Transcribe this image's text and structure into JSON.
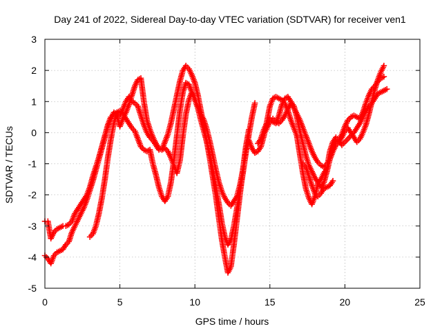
{
  "chart_data": {
    "type": "scatter",
    "title": "Day 241 of 2022, Sidereal Day-to-day VTEC variation (SDTVAR) for receiver ven1",
    "xlabel": "GPS time / hours",
    "ylabel": "SDTVAR / TECUs",
    "xlim": [
      0,
      25
    ],
    "ylim": [
      -5,
      3
    ],
    "xticks": [
      0,
      5,
      10,
      15,
      20,
      25
    ],
    "yticks": [
      -5,
      -4,
      -3,
      -2,
      -1,
      0,
      1,
      2,
      3
    ],
    "grid": true,
    "legend": "none",
    "marker": "plus",
    "color": "#ff0000",
    "series": [
      {
        "x": [
          0.0,
          0.2,
          0.4,
          0.6,
          0.8,
          1.0,
          1.2,
          1.4,
          1.6,
          1.8,
          2.0,
          2.2,
          2.4,
          2.6,
          2.8,
          3.0,
          3.2,
          3.4,
          3.6,
          3.8,
          4.0,
          4.2,
          4.4,
          4.6,
          4.8,
          5.0,
          5.2,
          5.4,
          5.6,
          5.8,
          6.0,
          6.2,
          6.4,
          6.6,
          6.8,
          7.0,
          7.2,
          7.4,
          7.6,
          7.8,
          8.0,
          8.2,
          8.4,
          8.6,
          8.8,
          9.0,
          9.2,
          9.4,
          9.6,
          9.8,
          10.0,
          10.2,
          10.4,
          10.6,
          10.8,
          11.0,
          11.2,
          11.4,
          11.6,
          11.8,
          12.0,
          12.2,
          12.4,
          12.6,
          12.8,
          13.0,
          13.2,
          13.4,
          13.6,
          13.8,
          14.0
        ],
        "y": [
          -2.85,
          -2.85,
          -3.4,
          -3.2,
          -3.1,
          -3.05,
          -3.0,
          -3.0,
          -2.95,
          -2.85,
          -2.6,
          -2.45,
          -2.3,
          -2.15,
          -2.0,
          -1.75,
          -1.4,
          -1.1,
          -0.8,
          -0.45,
          -0.1,
          0.25,
          0.5,
          0.6,
          0.65,
          0.7,
          0.6,
          0.45,
          0.3,
          0.15,
          0.05,
          -0.2,
          -0.45,
          -0.55,
          -0.6,
          -0.55,
          -1.0,
          -1.35,
          -1.75,
          -2.05,
          -2.2,
          -2.05,
          -1.6,
          -0.9,
          -0.1,
          0.7,
          1.3,
          1.6,
          1.55,
          1.3,
          1.05,
          0.8,
          0.4,
          0.05,
          -0.3,
          -0.7,
          -1.2,
          -1.75,
          -2.3,
          -2.9,
          -3.35,
          -3.6,
          -3.45,
          -3.0,
          -2.45,
          -1.9,
          -1.3,
          -0.65,
          -0.05,
          0.5,
          0.95
        ]
      },
      {
        "x": [
          0.0,
          0.2,
          0.4,
          0.6,
          0.8,
          1.0,
          1.2,
          1.4,
          1.6,
          1.8,
          2.0,
          2.2,
          2.4,
          2.6,
          2.8,
          3.0,
          3.2,
          3.4,
          3.6,
          3.8,
          4.0,
          4.2,
          4.4,
          4.6,
          4.8,
          5.0,
          5.2,
          5.4,
          5.6,
          5.8,
          6.0,
          6.2,
          6.4,
          6.6,
          6.8,
          7.0,
          7.2,
          7.4,
          7.6,
          7.8,
          8.0,
          8.2,
          8.4,
          8.6,
          8.8,
          9.0,
          9.2,
          9.4,
          9.6,
          9.8,
          10.0,
          10.2,
          10.4,
          10.6,
          10.8,
          11.0,
          11.2,
          11.4,
          11.6,
          11.8,
          12.0,
          12.2,
          12.4,
          12.6,
          12.8,
          13.0,
          13.2,
          13.4,
          13.6
        ],
        "y": [
          -3.95,
          -4.05,
          -4.2,
          -3.95,
          -3.85,
          -3.8,
          -3.75,
          -3.6,
          -3.5,
          -3.2,
          -3.0,
          -2.8,
          -2.6,
          -2.4,
          -2.15,
          -1.85,
          -1.55,
          -1.2,
          -0.85,
          -0.5,
          -0.15,
          0.2,
          0.45,
          0.65,
          0.55,
          0.2,
          0.45,
          0.65,
          0.9,
          1.2,
          1.5,
          1.7,
          1.75,
          1.0,
          0.4,
          0.1,
          -0.15,
          -0.35,
          -0.5,
          -0.55,
          -0.3,
          -0.05,
          0.3,
          0.75,
          1.2,
          1.65,
          2.0,
          2.15,
          2.05,
          1.85,
          1.6,
          1.2,
          0.7,
          0.2,
          -0.3,
          -0.85,
          -1.45,
          -2.05,
          -2.75,
          -3.45,
          -4.0,
          -4.5,
          -4.3,
          -3.6,
          -2.8,
          -2.0,
          -1.2,
          -0.45,
          0.1
        ]
      },
      {
        "x": [
          3.0,
          3.2,
          3.4,
          3.6,
          3.8,
          4.0,
          4.2,
          4.4,
          4.6,
          4.8,
          5.0,
          5.2,
          5.4,
          5.6,
          5.8,
          6.0,
          6.2,
          6.4,
          6.6,
          6.8,
          7.0,
          7.2,
          7.4,
          7.6,
          7.8,
          8.0,
          8.2,
          8.4,
          8.6,
          8.8,
          9.0,
          9.2,
          9.4,
          9.6,
          9.8,
          10.0,
          10.2,
          10.4,
          10.6,
          10.8,
          11.0,
          11.2,
          11.4,
          11.6,
          11.8,
          12.0,
          12.2,
          12.4,
          12.6
        ],
        "y": [
          -3.35,
          -3.25,
          -3.0,
          -2.6,
          -2.1,
          -1.5,
          -0.8,
          -0.2,
          0.3,
          0.65,
          0.55,
          0.75,
          1.0,
          1.15,
          1.0,
          0.95,
          0.85,
          0.55,
          0.25,
          0.0,
          -0.15,
          -0.25,
          -0.4,
          -0.55,
          -0.55,
          -0.5,
          -0.6,
          -0.8,
          -1.05,
          -1.3,
          -0.9,
          -0.1,
          0.6,
          1.05,
          1.3,
          1.1,
          0.8,
          0.6,
          0.4,
          0.1,
          -0.3,
          -0.75,
          -1.2,
          -1.6,
          -1.9,
          -2.1,
          -2.25,
          -2.35,
          -2.2
        ]
      },
      {
        "x": [
          12.6,
          12.8,
          13.0,
          13.2,
          13.4,
          13.6,
          13.8,
          14.0,
          14.2,
          14.4,
          14.6,
          14.8,
          15.0,
          15.2,
          15.4,
          15.6,
          15.8,
          16.0,
          16.2,
          16.4,
          16.6,
          16.8,
          17.0,
          17.2,
          17.4,
          17.6,
          17.8,
          18.0,
          18.2,
          18.4,
          18.6,
          18.8,
          19.0,
          19.2,
          19.4,
          19.6,
          19.8,
          20.0,
          20.2,
          20.4,
          20.6,
          20.8,
          21.0,
          21.2,
          21.4,
          21.6,
          21.8,
          22.0,
          22.2,
          22.4,
          22.6,
          22.8
        ],
        "y": [
          -2.2,
          -2.05,
          -1.7,
          -1.2,
          -0.6,
          -0.25,
          -0.5,
          -0.65,
          -0.6,
          -0.45,
          -0.1,
          0.35,
          0.85,
          1.1,
          1.15,
          1.1,
          1.05,
          0.95,
          0.7,
          0.4,
          0.15,
          -0.1,
          -0.7,
          -1.3,
          -1.8,
          -2.1,
          -2.3,
          -2.05,
          -1.65,
          -1.5,
          -1.3,
          -1.15,
          -0.6,
          -0.3,
          -0.15,
          -0.25,
          -0.4,
          -0.3,
          -0.2,
          -0.1,
          0.0,
          0.15,
          0.3,
          0.5,
          0.7,
          0.85,
          0.95,
          1.1,
          1.25,
          1.3,
          1.35,
          1.4
        ]
      },
      {
        "x": [
          14.2,
          14.4,
          14.6,
          14.8,
          15.0,
          15.2,
          15.4,
          15.6,
          15.8,
          16.0,
          16.2,
          16.4,
          16.6,
          16.8,
          17.0,
          17.2,
          17.4,
          17.6,
          17.8,
          18.0,
          18.2,
          18.4,
          18.6,
          18.8,
          19.0,
          19.2,
          19.4,
          19.6,
          19.8,
          20.0,
          20.2,
          20.4,
          20.6,
          20.8,
          21.0,
          21.2,
          21.4,
          21.6,
          21.8,
          22.0,
          22.2,
          22.4,
          22.6
        ],
        "y": [
          -0.35,
          -0.2,
          0.1,
          0.3,
          0.45,
          0.35,
          0.3,
          0.55,
          0.9,
          1.1,
          1.15,
          1.0,
          0.85,
          0.5,
          0.05,
          -0.35,
          -0.75,
          -1.05,
          -1.25,
          -1.45,
          -1.6,
          -1.75,
          -1.6,
          -1.25,
          -0.85,
          -0.5,
          -0.3,
          -0.25,
          -0.05,
          0.2,
          0.4,
          0.5,
          0.55,
          0.5,
          0.45,
          0.65,
          0.95,
          1.2,
          1.4,
          1.5,
          1.65,
          1.75,
          1.8
        ]
      },
      {
        "x": [
          14.6,
          14.8,
          15.0,
          15.2,
          15.4,
          15.6,
          15.8,
          16.0,
          16.2,
          16.4,
          16.6,
          16.8,
          17.0,
          17.2,
          17.4,
          17.6,
          17.8,
          18.0,
          18.2,
          18.4,
          18.6,
          18.8,
          19.0,
          19.2,
          19.4,
          19.6,
          19.8,
          20.0,
          20.2,
          20.4,
          20.6,
          20.8,
          21.0,
          21.2,
          21.4,
          21.6,
          21.8,
          22.0,
          22.2,
          22.4,
          22.6
        ],
        "y": [
          -0.05,
          0.15,
          0.35,
          0.45,
          0.35,
          0.3,
          0.4,
          0.55,
          0.75,
          0.95,
          0.8,
          0.6,
          0.4,
          0.15,
          -0.1,
          -0.35,
          -0.6,
          -0.8,
          -0.95,
          -1.05,
          -1.1,
          -1.0,
          -0.85,
          -0.6,
          -0.4,
          -0.3,
          -0.15,
          0.05,
          0.15,
          0.0,
          -0.15,
          -0.3,
          -0.2,
          0.0,
          0.25,
          0.6,
          1.0,
          1.4,
          1.7,
          1.95,
          2.15
        ]
      },
      {
        "x": [
          17.2,
          17.4,
          17.6,
          17.8,
          18.0,
          18.2,
          18.4,
          18.6,
          18.8,
          19.0,
          19.2
        ],
        "y": [
          -1.0,
          -1.1,
          -1.4,
          -1.7,
          -1.95,
          -2.05,
          -1.95,
          -1.8,
          -1.75,
          -1.7,
          -1.55
        ]
      }
    ]
  }
}
